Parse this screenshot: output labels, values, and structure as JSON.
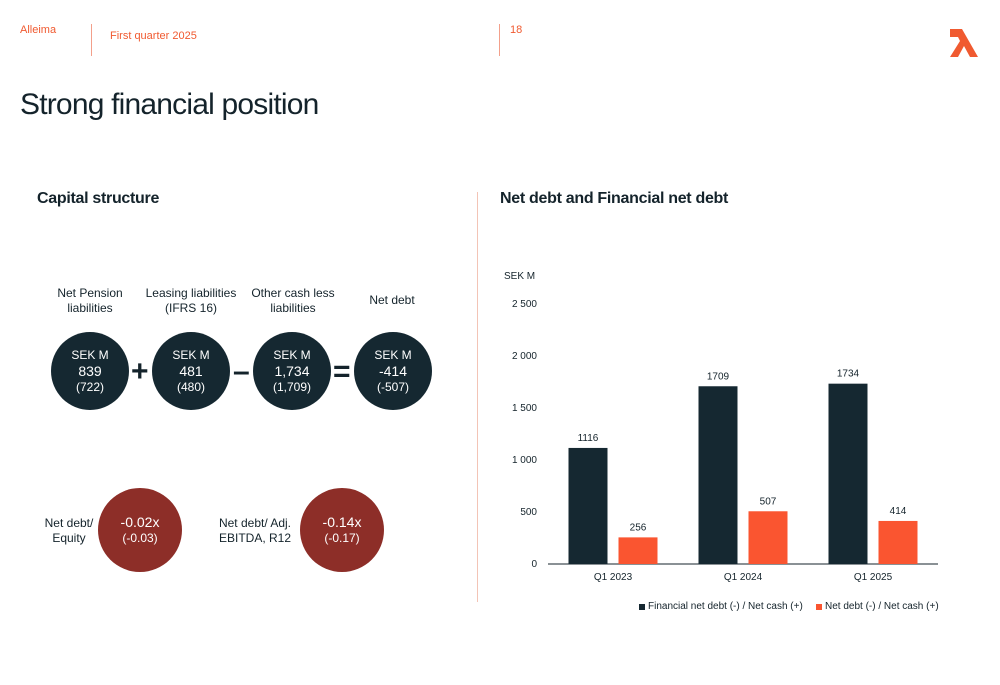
{
  "header": {
    "company": "Alleima",
    "period": "First quarter 2025",
    "page_number": "18"
  },
  "page_title": "Strong financial position",
  "capital_structure": {
    "title": "Capital structure",
    "items": [
      {
        "label": "Net Pension liabilities",
        "unit": "SEK M",
        "value": "839",
        "prior": "(722)"
      },
      {
        "label": "Leasing liabilities (IFRS 16)",
        "unit": "SEK M",
        "value": "481",
        "prior": "(480)"
      },
      {
        "label": "Other cash less liabilities",
        "unit": "SEK M",
        "value": "1,734",
        "prior": "(1,709)"
      },
      {
        "label": "Net debt",
        "unit": "SEK M",
        "value": "-414",
        "prior": "(-507)"
      }
    ],
    "operators": [
      "+",
      "–",
      "="
    ],
    "ratios": [
      {
        "label": "Net debt/ Equity",
        "value": "-0.02x",
        "prior": "(-0.03)"
      },
      {
        "label": "Net debt/ Adj. EBITDA, R12",
        "value": "-0.14x",
        "prior": "(-0.17)"
      }
    ]
  },
  "chart_data": {
    "type": "bar",
    "title": "Net debt and Financial net debt",
    "ylabel": "SEK M",
    "categories": [
      "Q1 2023",
      "Q1 2024",
      "Q1 2025"
    ],
    "series": [
      {
        "name": "Financial net debt (-) / Net cash (+)",
        "values": [
          1116,
          1709,
          1734
        ],
        "labels": [
          "1116",
          "1709",
          "1734"
        ],
        "color": "#152831"
      },
      {
        "name": "Net debt (-) / Net cash (+)",
        "values": [
          256,
          507,
          414
        ],
        "labels": [
          "256",
          "507",
          "414"
        ],
        "color": "#fa5530"
      }
    ],
    "yticks": [
      0,
      500,
      1000,
      1500,
      2000,
      2500
    ],
    "ytick_labels": [
      "0",
      "500",
      "1 000",
      "1 500",
      "2 000",
      "2 500"
    ],
    "ylim": [
      0,
      2500
    ],
    "grid": false,
    "legend_position": "bottom"
  },
  "colors": {
    "accent": "#f05a30",
    "dark": "#152831",
    "ratio_red": "#8d2e28"
  }
}
